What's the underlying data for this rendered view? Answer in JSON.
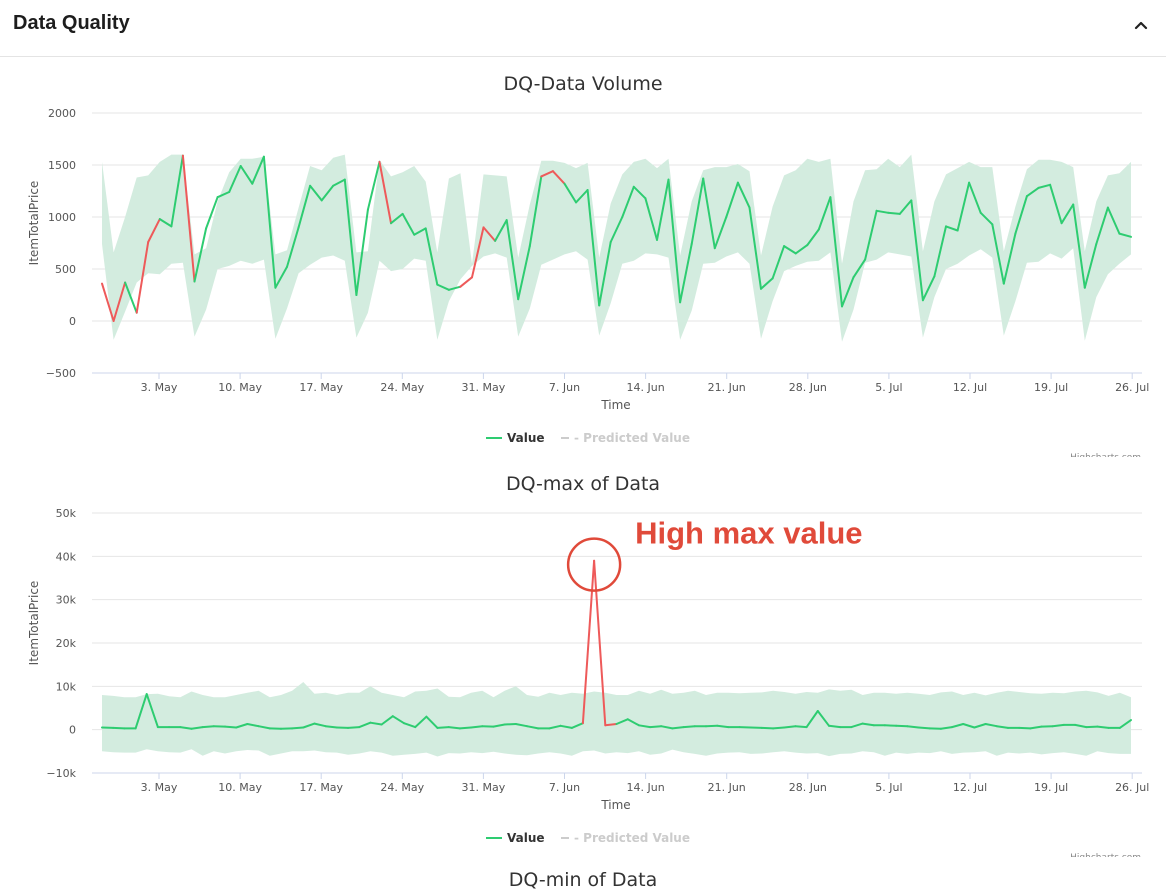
{
  "panel": {
    "title": "Data Quality",
    "collapse_icon": "chevron-up-icon"
  },
  "colors": {
    "value": "#2ecc71",
    "anomaly": "#ee5a5a",
    "band": "#d3ecdf",
    "predicted": "#cccccc",
    "annotation": "#e04a3a"
  },
  "next_chart_title": "DQ-min of Data",
  "chart_data": [
    {
      "type": "line",
      "title": "DQ-Data Volume",
      "xlabel": "Time",
      "ylabel": "ItemTotalPrice",
      "ylim": [
        -500,
        2000
      ],
      "yticks": [
        -500,
        0,
        500,
        1000,
        1500,
        2000
      ],
      "x_start": "2021-04-26",
      "x_tick_labels": [
        "3. May",
        "10. May",
        "17. May",
        "24. May",
        "31. May",
        "7. Jun",
        "14. Jun",
        "21. Jun",
        "28. Jun",
        "5. Jul",
        "12. Jul",
        "19. Jul",
        "26. Jul"
      ],
      "legend": [
        {
          "name": "Value"
        },
        {
          "name": "- Predicted Value"
        }
      ],
      "legend_placement": "bottom-center",
      "credits": "Highcharts.com",
      "series": [
        {
          "name": "Value",
          "values": [
            360,
            0,
            370,
            80,
            760,
            980,
            910,
            1590,
            380,
            890,
            1190,
            1240,
            1490,
            1320,
            1580,
            320,
            520,
            900,
            1300,
            1160,
            1300,
            1360,
            250,
            1070,
            1530,
            940,
            1030,
            830,
            890,
            350,
            300,
            330,
            420,
            900,
            770,
            970,
            210,
            720,
            1390,
            1440,
            1320,
            1140,
            1260,
            150,
            760,
            1000,
            1290,
            1180,
            780,
            1360,
            180,
            740,
            1370,
            700,
            1000,
            1330,
            1090,
            310,
            410,
            720,
            650,
            730,
            880,
            1190,
            140,
            420,
            590,
            1060,
            1040,
            1030,
            1160,
            200,
            430,
            910,
            870,
            1330,
            1040,
            930,
            360,
            840,
            1200,
            1280,
            1310,
            940,
            1120,
            320,
            740,
            1090,
            840,
            810
          ]
        },
        {
          "name": "anomaly_indices",
          "values": [
            0,
            1,
            3,
            4,
            7,
            24,
            31,
            32,
            33,
            38,
            39
          ]
        },
        {
          "name": "band_upper",
          "values": [
            1530,
            660,
            1000,
            1380,
            1400,
            1530,
            1600,
            1600,
            640,
            700,
            1150,
            1430,
            1560,
            1560,
            1580,
            640,
            680,
            1090,
            1490,
            1450,
            1570,
            1600,
            660,
            670,
            1550,
            1390,
            1430,
            1490,
            1340,
            660,
            1370,
            1420,
            550,
            1410,
            1400,
            1390,
            610,
            1120,
            1540,
            1540,
            1520,
            1470,
            1520,
            610,
            1130,
            1410,
            1530,
            1560,
            1470,
            1560,
            630,
            1150,
            1450,
            1480,
            1480,
            1510,
            1440,
            630,
            1100,
            1400,
            1450,
            1560,
            1530,
            1560,
            550,
            1150,
            1450,
            1460,
            1560,
            1480,
            1600,
            670,
            1150,
            1410,
            1470,
            1530,
            1480,
            1480,
            670,
            1100,
            1460,
            1550,
            1550,
            1530,
            1480,
            670,
            1150,
            1400,
            1420,
            1530,
            1520
          ]
        },
        {
          "name": "band_lower",
          "values": [
            740,
            -180,
            90,
            370,
            460,
            450,
            550,
            560,
            -150,
            110,
            500,
            530,
            580,
            550,
            590,
            -170,
            120,
            460,
            540,
            610,
            630,
            580,
            -160,
            80,
            580,
            480,
            500,
            600,
            580,
            -180,
            190,
            400,
            530,
            620,
            650,
            610,
            -150,
            120,
            540,
            590,
            640,
            670,
            590,
            -140,
            170,
            550,
            580,
            650,
            640,
            610,
            -180,
            100,
            550,
            560,
            620,
            660,
            550,
            -170,
            190,
            480,
            530,
            570,
            580,
            660,
            -200,
            110,
            560,
            590,
            660,
            640,
            620,
            -160,
            230,
            500,
            550,
            630,
            690,
            610,
            -140,
            190,
            560,
            570,
            650,
            600,
            700,
            -190,
            230,
            450,
            550,
            640,
            680
          ]
        }
      ]
    },
    {
      "type": "line",
      "title": "DQ-max of Data",
      "xlabel": "Time",
      "ylabel": "ItemTotalPrice",
      "ylim": [
        -10000,
        50000
      ],
      "yticks": [
        -10000,
        0,
        10000,
        20000,
        30000,
        40000,
        50000
      ],
      "ytick_labels": [
        "-10k",
        "0",
        "10k",
        "20k",
        "30k",
        "40k",
        "50k"
      ],
      "x_start": "2021-04-26",
      "x_tick_labels": [
        "3. May",
        "10. May",
        "17. May",
        "24. May",
        "31. May",
        "7. Jun",
        "14. Jun",
        "21. Jun",
        "28. Jun",
        "5. Jul",
        "12. Jul",
        "19. Jul",
        "26. Jul"
      ],
      "legend": [
        {
          "name": "Value"
        },
        {
          "name": "- Predicted Value"
        }
      ],
      "legend_placement": "bottom-center",
      "credits": "Highcharts.com",
      "annotation": {
        "text": "High max value",
        "index": 44
      },
      "series": [
        {
          "name": "Value",
          "values": [
            500,
            400,
            300,
            300,
            8200,
            600,
            600,
            600,
            200,
            600,
            800,
            700,
            500,
            1300,
            800,
            300,
            200,
            300,
            500,
            1400,
            800,
            500,
            400,
            600,
            1600,
            1200,
            3100,
            1500,
            600,
            3000,
            400,
            600,
            300,
            500,
            800,
            700,
            1200,
            1300,
            800,
            300,
            300,
            900,
            400,
            1500,
            39000,
            1000,
            1300,
            2400,
            1000,
            600,
            800,
            300,
            600,
            800,
            800,
            900,
            600,
            600,
            500,
            400,
            300,
            500,
            800,
            600,
            4300,
            900,
            600,
            600,
            1400,
            1000,
            1000,
            900,
            800,
            500,
            300,
            200,
            600,
            1300,
            500,
            1300,
            800,
            400,
            400,
            300,
            700,
            800,
            1100,
            1100,
            600,
            700,
            400,
            400,
            2200
          ]
        },
        {
          "name": "anomaly_indices",
          "values": [
            43,
            44,
            45
          ]
        },
        {
          "name": "band_upper",
          "values": [
            8000,
            7800,
            7500,
            7500,
            8200,
            8300,
            7700,
            7500,
            8800,
            8000,
            7500,
            7500,
            8000,
            8500,
            9000,
            7500,
            8000,
            9000,
            11000,
            8300,
            8500,
            8000,
            8500,
            8500,
            10000,
            8500,
            8000,
            7500,
            8800,
            9000,
            9500,
            7600,
            7500,
            8500,
            9000,
            7500,
            9000,
            10000,
            8000,
            7600,
            8500,
            8000,
            8500,
            8300,
            8800,
            8500,
            8000,
            8000,
            9000,
            8300,
            9200,
            8300,
            8500,
            9000,
            8000,
            8500,
            8500,
            8400,
            8500,
            8600,
            9000,
            8700,
            8300,
            8700,
            8500,
            9300,
            9000,
            9200,
            8000,
            8500,
            8500,
            8300,
            8500,
            8300,
            8000,
            8600,
            8800,
            8000,
            8500,
            7900,
            8500,
            9000,
            8700,
            8400,
            8300,
            8500,
            8400,
            8800,
            9000,
            8600,
            7800,
            8500,
            7500
          ]
        },
        {
          "name": "band_lower",
          "values": [
            -5000,
            -5200,
            -5300,
            -5300,
            -4500,
            -5000,
            -5200,
            -5300,
            -4500,
            -6000,
            -5000,
            -5500,
            -5000,
            -4700,
            -4800,
            -6000,
            -5500,
            -5000,
            -5000,
            -4800,
            -5200,
            -5300,
            -5800,
            -5500,
            -5000,
            -5300,
            -6000,
            -5800,
            -5600,
            -5300,
            -6200,
            -5400,
            -5500,
            -5200,
            -5400,
            -5100,
            -5500,
            -5800,
            -5900,
            -5500,
            -5200,
            -5500,
            -6000,
            -5000,
            -4800,
            -5500,
            -5200,
            -5400,
            -5000,
            -5800,
            -5500,
            -4600,
            -5200,
            -5600,
            -6000,
            -5500,
            -5300,
            -5200,
            -5600,
            -5500,
            -5200,
            -5000,
            -5300,
            -5500,
            -5400,
            -6100,
            -5600,
            -5500,
            -5000,
            -5200,
            -6000,
            -5300,
            -5600,
            -5300,
            -5400,
            -5000,
            -5600,
            -5300,
            -5200,
            -5000,
            -6000,
            -5300,
            -5500,
            -5300,
            -5700,
            -5400,
            -5200,
            -5600,
            -6000,
            -5000,
            -5400,
            -5600,
            -5600
          ]
        }
      ]
    }
  ]
}
